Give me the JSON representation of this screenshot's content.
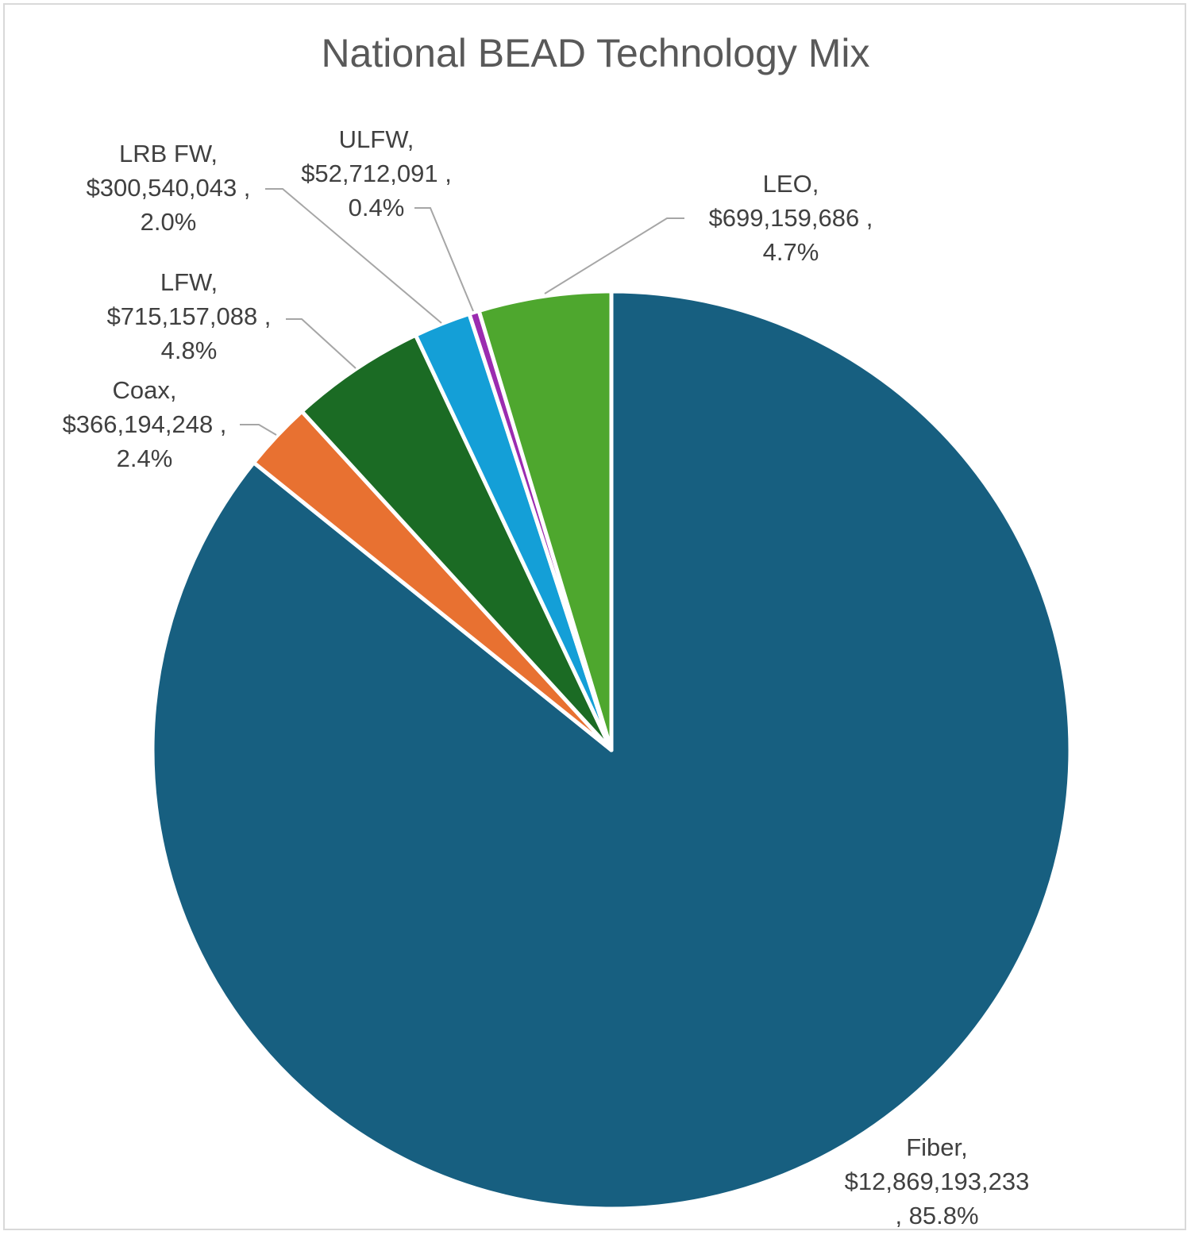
{
  "chart_data": {
    "type": "pie",
    "title": "National BEAD Technology Mix",
    "slices": [
      {
        "name": "Fiber",
        "value_label": "$12,869,193,233",
        "value": 12869193233,
        "percent_label": "85.8%",
        "percent": 85.8,
        "color": "#175f80"
      },
      {
        "name": "Coax",
        "value_label": "$366,194,248",
        "value": 366194248,
        "percent_label": "2.4%",
        "percent": 2.4,
        "color": "#e87131"
      },
      {
        "name": "LFW",
        "value_label": "$715,157,088",
        "value": 715157088,
        "percent_label": "4.8%",
        "percent": 4.8,
        "color": "#1b6b24"
      },
      {
        "name": "LRB FW",
        "value_label": "$300,540,043",
        "value": 300540043,
        "percent_label": "2.0%",
        "percent": 2.0,
        "color": "#149fd7"
      },
      {
        "name": "ULFW",
        "value_label": "$52,712,091",
        "value": 52712091,
        "percent_label": "0.4%",
        "percent": 0.4,
        "color": "#9b2cb0"
      },
      {
        "name": "LEO",
        "value_label": "$699,159,686",
        "value": 699159686,
        "percent_label": "4.7%",
        "percent": 4.7,
        "color": "#4ea72e"
      }
    ],
    "data_label_lines": [
      [
        "Fiber,",
        "$12,869,193,233",
        ", 85.8%"
      ],
      [
        "Coax,",
        "$366,194,248 ,",
        "2.4%"
      ],
      [
        "LFW,",
        "$715,157,088 ,",
        "4.8%"
      ],
      [
        "LRB FW,",
        "$300,540,043 ,",
        "2.0%"
      ],
      [
        "ULFW,",
        "$52,712,091 ,",
        "0.4%"
      ],
      [
        "LEO,",
        "$699,159,686 ,",
        "4.7%"
      ]
    ],
    "legend": "none"
  }
}
